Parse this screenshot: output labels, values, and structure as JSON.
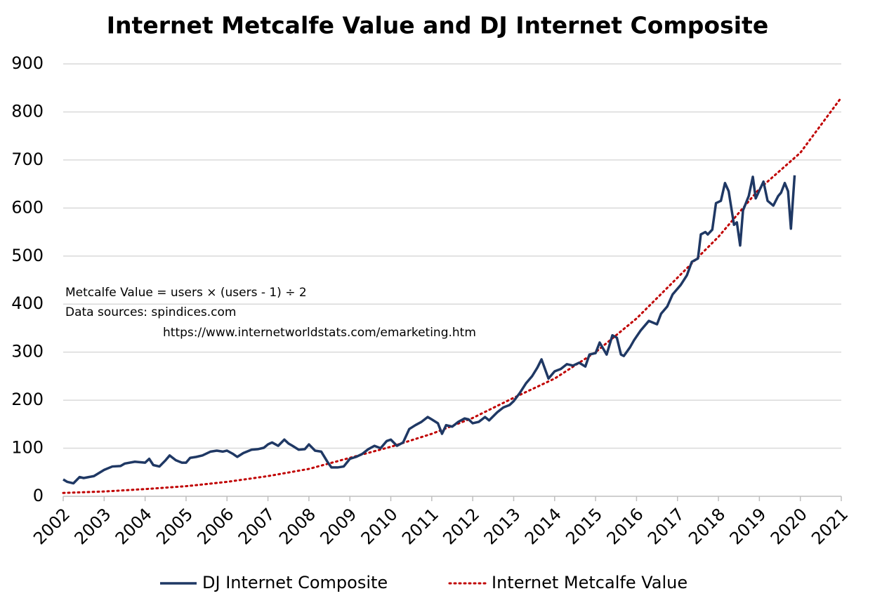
{
  "chart_data": {
    "type": "line",
    "title": "Internet Metcalfe Value and DJ Internet Composite",
    "annotations": [
      "Metcalfe Value = users × (users - 1) ÷ 2",
      "Data sources:  spindices.com",
      "https://www.internetworldstats.com/emarketing.htm"
    ],
    "xlim": [
      2002,
      2021
    ],
    "xticks": [
      2002,
      2003,
      2004,
      2005,
      2006,
      2007,
      2008,
      2009,
      2010,
      2011,
      2012,
      2013,
      2014,
      2015,
      2016,
      2017,
      2018,
      2019,
      2020,
      2021
    ],
    "ylim": [
      0,
      900
    ],
    "yticks": [
      0,
      100,
      200,
      300,
      400,
      500,
      600,
      700,
      800,
      900
    ],
    "grid": true,
    "legend": "bottom",
    "series": [
      {
        "name": "DJ Internet Composite",
        "color": "#1f3864",
        "style": "solid",
        "x": [
          2002.0,
          2002.1,
          2002.25,
          2002.4,
          2002.5,
          2002.75,
          2003.0,
          2003.2,
          2003.4,
          2003.5,
          2003.75,
          2004.0,
          2004.1,
          2004.2,
          2004.35,
          2004.5,
          2004.6,
          2004.75,
          2004.9,
          2005.0,
          2005.1,
          2005.25,
          2005.4,
          2005.6,
          2005.75,
          2005.9,
          2006.0,
          2006.15,
          2006.25,
          2006.4,
          2006.6,
          2006.75,
          2006.9,
          2007.0,
          2007.1,
          2007.25,
          2007.4,
          2007.5,
          2007.6,
          2007.75,
          2007.9,
          2008.0,
          2008.15,
          2008.3,
          2008.45,
          2008.55,
          2008.7,
          2008.85,
          2009.0,
          2009.15,
          2009.3,
          2009.45,
          2009.6,
          2009.75,
          2009.9,
          2010.0,
          2010.15,
          2010.3,
          2010.45,
          2010.6,
          2010.75,
          2010.9,
          2011.0,
          2011.15,
          2011.25,
          2011.35,
          2011.5,
          2011.65,
          2011.8,
          2011.9,
          2012.0,
          2012.15,
          2012.3,
          2012.4,
          2012.6,
          2012.75,
          2012.9,
          2013.0,
          2013.15,
          2013.3,
          2013.45,
          2013.58,
          2013.68,
          2013.85,
          2014.0,
          2014.15,
          2014.3,
          2014.45,
          2014.6,
          2014.75,
          2014.85,
          2015.0,
          2015.1,
          2015.27,
          2015.41,
          2015.52,
          2015.62,
          2015.69,
          2015.84,
          2015.94,
          2016.1,
          2016.3,
          2016.5,
          2016.6,
          2016.75,
          2016.88,
          2017.08,
          2017.23,
          2017.35,
          2017.5,
          2017.57,
          2017.68,
          2017.74,
          2017.85,
          2017.94,
          2018.06,
          2018.16,
          2018.25,
          2018.38,
          2018.45,
          2018.53,
          2018.6,
          2018.74,
          2018.84,
          2018.91,
          2019.1,
          2019.2,
          2019.34,
          2019.46,
          2019.53,
          2019.62,
          2019.7,
          2019.77,
          2019.86
        ],
        "values": [
          35,
          30,
          27,
          40,
          38,
          42,
          55,
          62,
          63,
          68,
          72,
          70,
          78,
          65,
          62,
          75,
          85,
          75,
          70,
          70,
          80,
          82,
          85,
          93,
          95,
          93,
          95,
          88,
          82,
          90,
          97,
          98,
          101,
          108,
          112,
          105,
          118,
          110,
          105,
          97,
          98,
          108,
          95,
          93,
          72,
          60,
          60,
          62,
          78,
          82,
          88,
          98,
          105,
          100,
          115,
          118,
          105,
          112,
          140,
          148,
          155,
          165,
          160,
          152,
          130,
          148,
          145,
          155,
          162,
          160,
          152,
          155,
          165,
          158,
          175,
          185,
          190,
          198,
          215,
          235,
          250,
          268,
          285,
          245,
          260,
          265,
          275,
          272,
          278,
          270,
          295,
          298,
          320,
          295,
          335,
          330,
          295,
          292,
          310,
          325,
          345,
          365,
          358,
          380,
          395,
          420,
          440,
          460,
          488,
          495,
          545,
          550,
          545,
          555,
          610,
          615,
          652,
          635,
          565,
          570,
          522,
          595,
          625,
          665,
          620,
          655,
          615,
          605,
          625,
          632,
          652,
          635,
          557,
          668
        ]
      },
      {
        "name": "Internet Metcalfe Value",
        "color": "#c00000",
        "style": "dotted",
        "x": [
          2002,
          2003,
          2004,
          2005,
          2006,
          2007,
          2008,
          2009,
          2010,
          2011,
          2012,
          2013,
          2014,
          2015,
          2016,
          2017,
          2018,
          2019,
          2020,
          2021
        ],
        "values": [
          7,
          10,
          15,
          21,
          30,
          42,
          57,
          80,
          103,
          130,
          163,
          205,
          245,
          300,
          370,
          455,
          540,
          640,
          715,
          830
        ]
      }
    ]
  }
}
